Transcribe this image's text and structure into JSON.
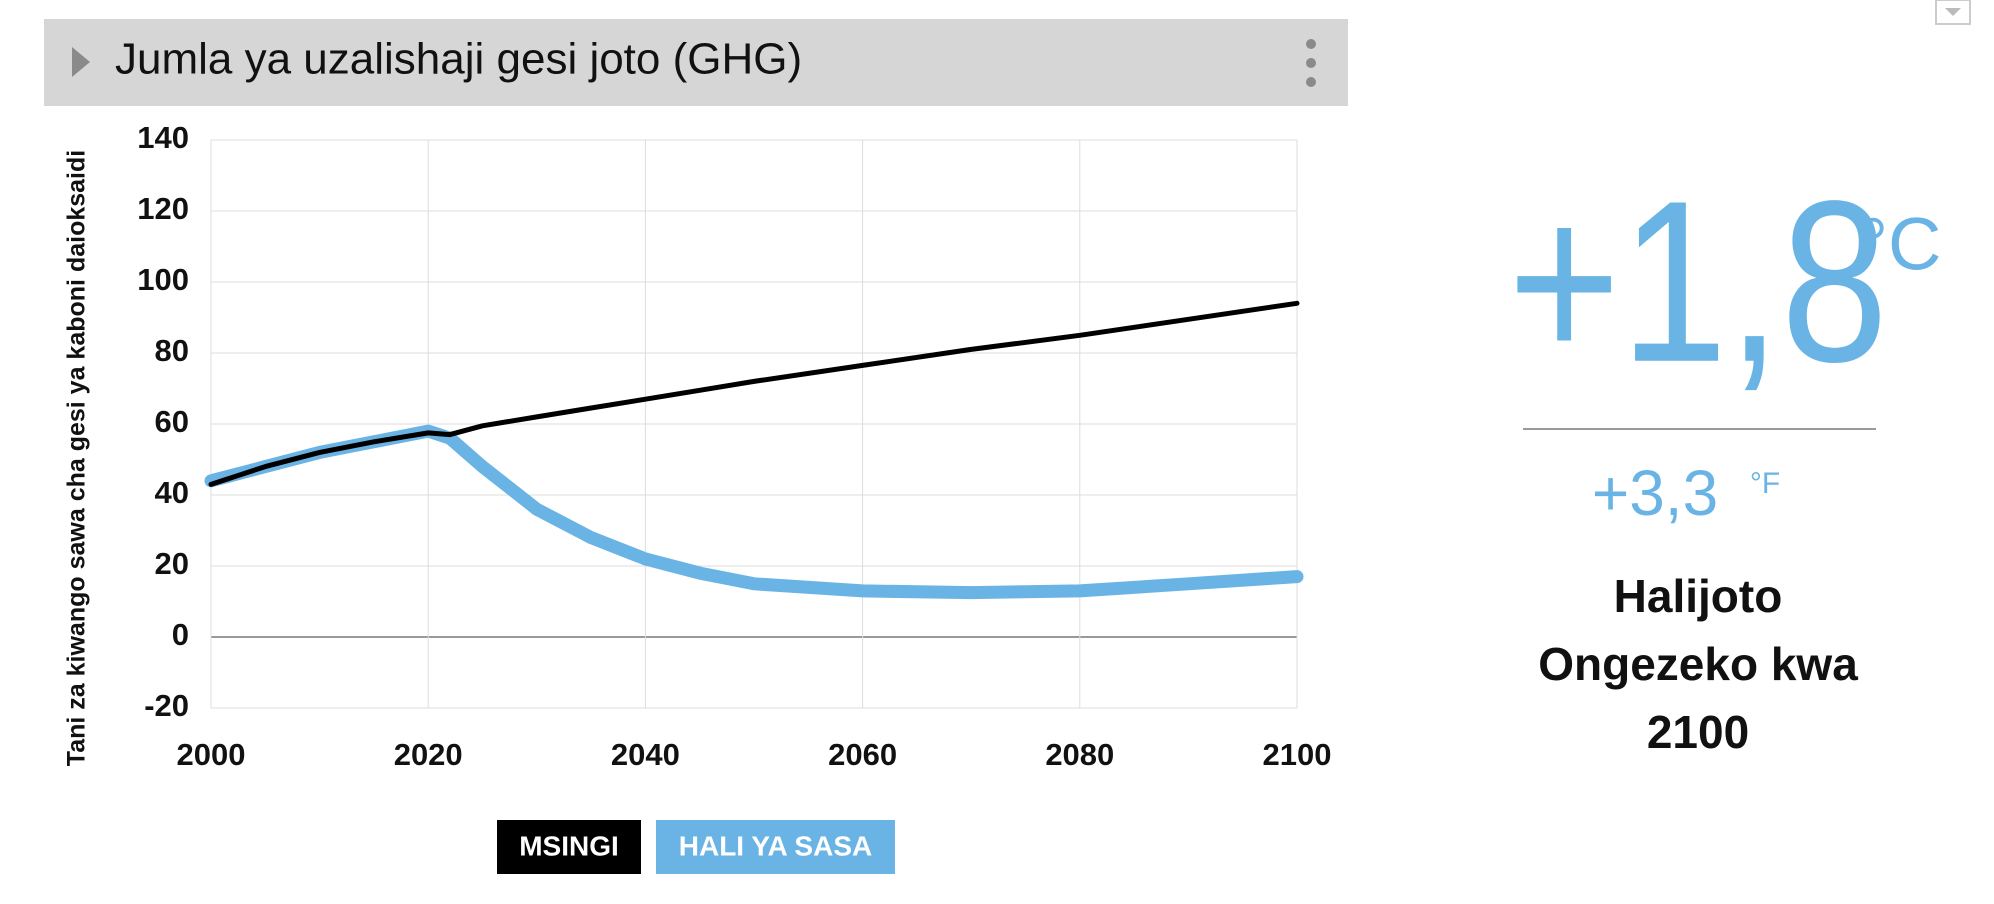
{
  "header": {
    "title": "Jumla ya uzalishaji gesi joto (GHG)"
  },
  "chart_data": {
    "type": "line",
    "y_label": "Tani za kiwango sawa cha gesi ya kaboni daioksaidi",
    "x": [
      2000,
      2005,
      2010,
      2015,
      2020,
      2022,
      2025,
      2030,
      2035,
      2040,
      2045,
      2050,
      2060,
      2070,
      2080,
      2090,
      2100
    ],
    "series": [
      {
        "name": "MSINGI",
        "color": "#000000",
        "values": [
          43,
          48,
          52,
          55,
          57.5,
          57,
          59.5,
          62,
          64.5,
          67,
          69.5,
          72,
          76.5,
          81,
          85,
          89.5,
          94
        ]
      },
      {
        "name": "HALI YA SASA",
        "color": "#6ab4e5",
        "values": [
          44,
          48,
          52,
          55,
          58,
          56,
          48,
          36,
          28,
          22,
          18,
          15,
          13,
          12.5,
          13,
          15,
          17
        ]
      }
    ],
    "xlim": [
      2000,
      2100
    ],
    "xticks": [
      2000,
      2020,
      2040,
      2060,
      2080,
      2100
    ],
    "ylim": [
      -20,
      140
    ],
    "yticks": [
      -20,
      0,
      20,
      40,
      60,
      80,
      100,
      120,
      140
    ],
    "grid": true
  },
  "panel": {
    "celsius": "+1,8",
    "celsius_unit": "°C",
    "fahrenheit": "+3,3",
    "fahrenheit_unit": "°F",
    "caption": [
      "Halijoto",
      "Ongezeko kwa",
      "2100"
    ]
  }
}
